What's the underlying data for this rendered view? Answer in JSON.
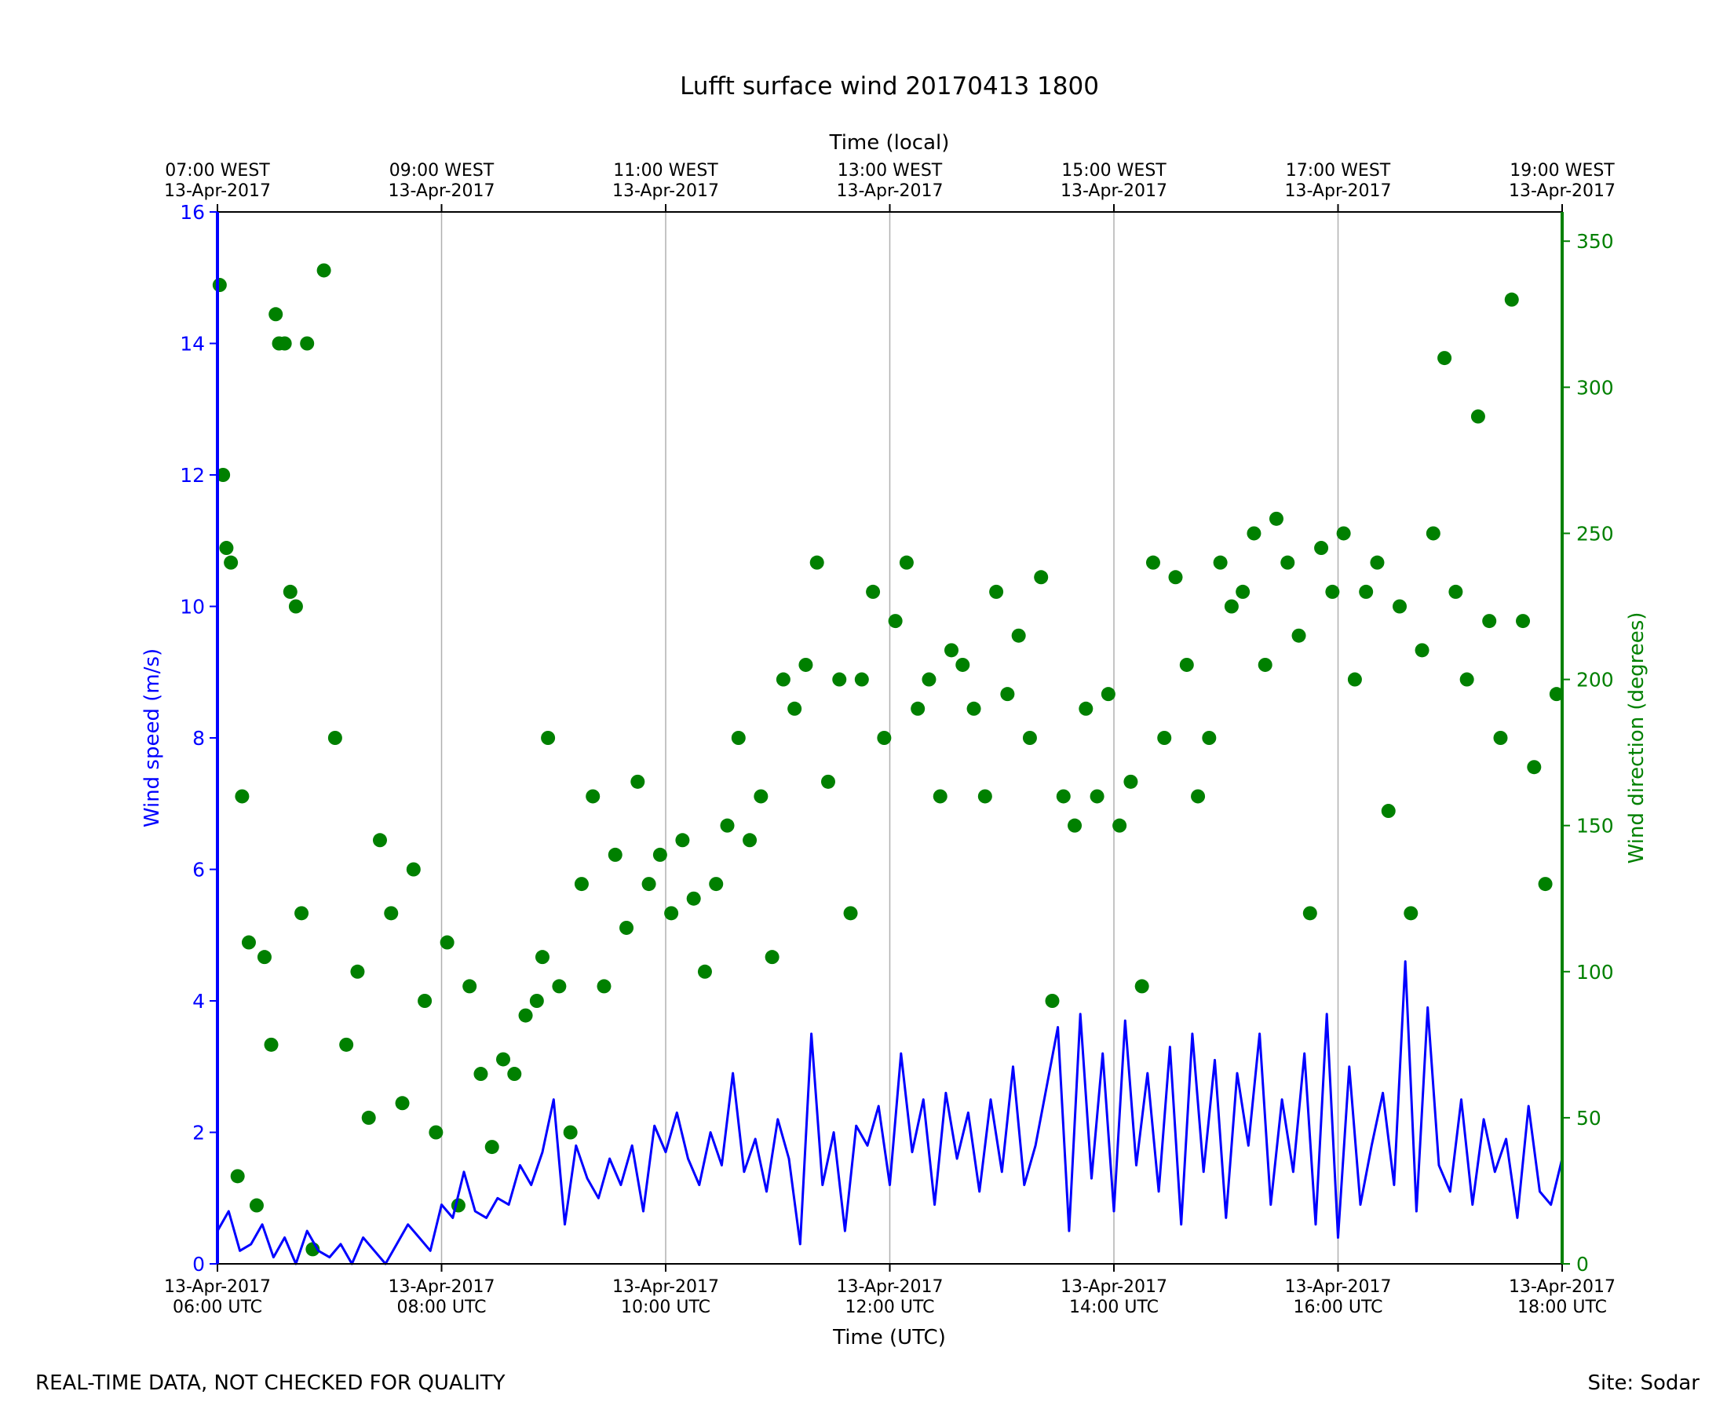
{
  "chart_data": {
    "type": "line+scatter",
    "title": "Lufft surface wind 20170413 1800",
    "xlabel_bottom": "Time (UTC)",
    "xlabel_top": "Time (local)",
    "ylabel_left": "Wind speed (m/s)",
    "ylabel_right": "Wind direction (degrees)",
    "x_range_hours_utc": [
      6,
      18
    ],
    "ylim_left": [
      0,
      16
    ],
    "ylim_right": [
      0,
      360
    ],
    "grid": "vertical only",
    "bottom_ticks": [
      {
        "hour": 6,
        "date": "13-Apr-2017",
        "time": "06:00 UTC"
      },
      {
        "hour": 8,
        "date": "13-Apr-2017",
        "time": "08:00 UTC"
      },
      {
        "hour": 10,
        "date": "13-Apr-2017",
        "time": "10:00 UTC"
      },
      {
        "hour": 12,
        "date": "13-Apr-2017",
        "time": "12:00 UTC"
      },
      {
        "hour": 14,
        "date": "13-Apr-2017",
        "time": "14:00 UTC"
      },
      {
        "hour": 16,
        "date": "13-Apr-2017",
        "time": "16:00 UTC"
      },
      {
        "hour": 18,
        "date": "13-Apr-2017",
        "time": "18:00 UTC"
      }
    ],
    "top_ticks": [
      {
        "hour": 6,
        "time": "07:00 WEST",
        "date": "13-Apr-2017"
      },
      {
        "hour": 8,
        "time": "09:00 WEST",
        "date": "13-Apr-2017"
      },
      {
        "hour": 10,
        "time": "11:00 WEST",
        "date": "13-Apr-2017"
      },
      {
        "hour": 12,
        "time": "13:00 WEST",
        "date": "13-Apr-2017"
      },
      {
        "hour": 14,
        "time": "15:00 WEST",
        "date": "13-Apr-2017"
      },
      {
        "hour": 16,
        "time": "17:00 WEST",
        "date": "13-Apr-2017"
      },
      {
        "hour": 18,
        "time": "19:00 WEST",
        "date": "13-Apr-2017"
      }
    ],
    "left_ticks": [
      0,
      2,
      4,
      6,
      8,
      10,
      12,
      14,
      16
    ],
    "right_ticks": [
      0,
      50,
      100,
      150,
      200,
      250,
      300,
      350
    ],
    "colors": {
      "speed": "#0000ff",
      "direction": "#008000",
      "grid": "#b0b0b0"
    },
    "speed_series": {
      "name": "Wind speed",
      "x_hours": [
        6.0,
        6.1,
        6.2,
        6.3,
        6.4,
        6.5,
        6.6,
        6.7,
        6.8,
        6.9,
        7.0,
        7.1,
        7.2,
        7.3,
        7.4,
        7.5,
        7.6,
        7.7,
        7.8,
        7.9,
        8.0,
        8.1,
        8.2,
        8.3,
        8.4,
        8.5,
        8.6,
        8.7,
        8.8,
        8.9,
        9.0,
        9.1,
        9.2,
        9.3,
        9.4,
        9.5,
        9.6,
        9.7,
        9.8,
        9.9,
        10.0,
        10.1,
        10.2,
        10.3,
        10.4,
        10.5,
        10.6,
        10.7,
        10.8,
        10.9,
        11.0,
        11.1,
        11.2,
        11.3,
        11.4,
        11.5,
        11.6,
        11.7,
        11.8,
        11.9,
        12.0,
        12.1,
        12.2,
        12.3,
        12.4,
        12.5,
        12.6,
        12.7,
        12.8,
        12.9,
        13.0,
        13.1,
        13.2,
        13.3,
        13.4,
        13.5,
        13.6,
        13.7,
        13.8,
        13.9,
        14.0,
        14.1,
        14.2,
        14.3,
        14.4,
        14.5,
        14.6,
        14.7,
        14.8,
        14.9,
        15.0,
        15.1,
        15.2,
        15.3,
        15.4,
        15.5,
        15.6,
        15.7,
        15.8,
        15.9,
        16.0,
        16.1,
        16.2,
        16.3,
        16.4,
        16.5,
        16.6,
        16.7,
        16.8,
        16.9,
        17.0,
        17.1,
        17.2,
        17.3,
        17.4,
        17.5,
        17.6,
        17.7,
        17.8,
        17.9,
        18.0
      ],
      "values": [
        0.5,
        0.8,
        0.2,
        0.3,
        0.6,
        0.1,
        0.4,
        0.0,
        0.5,
        0.2,
        0.1,
        0.3,
        0.0,
        0.4,
        0.2,
        0.0,
        0.3,
        0.6,
        0.4,
        0.2,
        0.9,
        0.7,
        1.4,
        0.8,
        0.7,
        1.0,
        0.9,
        1.5,
        1.2,
        1.7,
        2.5,
        0.6,
        1.8,
        1.3,
        1.0,
        1.6,
        1.2,
        1.8,
        0.8,
        2.1,
        1.7,
        2.3,
        1.6,
        1.2,
        2.0,
        1.5,
        2.9,
        1.4,
        1.9,
        1.1,
        2.2,
        1.6,
        0.3,
        3.5,
        1.2,
        2.0,
        0.5,
        2.1,
        1.8,
        2.4,
        1.2,
        3.2,
        1.7,
        2.5,
        0.9,
        2.6,
        1.6,
        2.3,
        1.1,
        2.5,
        1.4,
        3.0,
        1.2,
        1.8,
        2.7,
        3.6,
        0.5,
        3.8,
        1.3,
        3.2,
        0.8,
        3.7,
        1.5,
        2.9,
        1.1,
        3.3,
        0.6,
        3.5,
        1.4,
        3.1,
        0.7,
        2.9,
        1.8,
        3.5,
        0.9,
        2.5,
        1.4,
        3.2,
        0.6,
        3.8,
        0.4,
        3.0,
        0.9,
        1.8,
        2.6,
        1.2,
        4.6,
        0.8,
        3.9,
        1.5,
        1.1,
        2.5,
        0.9,
        2.2,
        1.4,
        1.9,
        0.7,
        2.4,
        1.1,
        0.9,
        1.6
      ],
      "note": "approximate envelope of the dense 1-minute trace"
    },
    "direction_series": {
      "name": "Wind direction",
      "x_hours": [
        6.02,
        6.05,
        6.08,
        6.12,
        6.18,
        6.22,
        6.28,
        6.35,
        6.42,
        6.48,
        6.52,
        6.55,
        6.6,
        6.65,
        6.7,
        6.75,
        6.8,
        6.85,
        6.95,
        7.05,
        7.15,
        7.25,
        7.35,
        7.45,
        7.55,
        7.65,
        7.75,
        7.85,
        7.95,
        8.05,
        8.15,
        8.25,
        8.35,
        8.45,
        8.55,
        8.65,
        8.75,
        8.85,
        8.9,
        8.95,
        9.05,
        9.15,
        9.25,
        9.35,
        9.45,
        9.55,
        9.65,
        9.75,
        9.85,
        9.95,
        10.05,
        10.15,
        10.25,
        10.35,
        10.45,
        10.55,
        10.65,
        10.75,
        10.85,
        10.95,
        11.05,
        11.15,
        11.25,
        11.35,
        11.45,
        11.55,
        11.65,
        11.75,
        11.85,
        11.95,
        12.05,
        12.15,
        12.25,
        12.35,
        12.45,
        12.55,
        12.65,
        12.75,
        12.85,
        12.95,
        13.05,
        13.15,
        13.25,
        13.35,
        13.45,
        13.55,
        13.65,
        13.75,
        13.85,
        13.95,
        14.05,
        14.15,
        14.25,
        14.35,
        14.45,
        14.55,
        14.65,
        14.75,
        14.85,
        14.95,
        15.05,
        15.15,
        15.25,
        15.35,
        15.45,
        15.55,
        15.65,
        15.75,
        15.85,
        15.95,
        16.05,
        16.15,
        16.25,
        16.35,
        16.45,
        16.55,
        16.65,
        16.75,
        16.85,
        16.95,
        17.05,
        17.15,
        17.25,
        17.35,
        17.45,
        17.55,
        17.65,
        17.75,
        17.85,
        17.95
      ],
      "values": [
        335,
        270,
        245,
        240,
        30,
        160,
        110,
        20,
        105,
        75,
        325,
        315,
        315,
        230,
        225,
        120,
        315,
        5,
        340,
        180,
        75,
        100,
        50,
        145,
        120,
        55,
        135,
        90,
        45,
        110,
        20,
        95,
        65,
        40,
        70,
        65,
        85,
        90,
        105,
        180,
        95,
        45,
        130,
        160,
        95,
        140,
        115,
        165,
        130,
        140,
        120,
        145,
        125,
        100,
        130,
        150,
        180,
        145,
        160,
        105,
        200,
        190,
        205,
        240,
        165,
        200,
        120,
        200,
        230,
        180,
        220,
        240,
        190,
        200,
        160,
        210,
        205,
        190,
        160,
        230,
        195,
        215,
        180,
        235,
        90,
        160,
        150,
        190,
        160,
        195,
        150,
        165,
        95,
        240,
        180,
        235,
        205,
        160,
        180,
        240,
        225,
        230,
        250,
        205,
        255,
        240,
        215,
        120,
        245,
        230,
        250,
        200,
        230,
        240,
        155,
        225,
        120,
        210,
        250,
        310,
        230,
        200,
        290,
        220,
        180,
        330,
        220,
        170,
        130,
        195
      ],
      "note": "approximate sample of the scatter markers"
    }
  },
  "footer": {
    "left": "REAL-TIME DATA, NOT CHECKED FOR QUALITY",
    "right": "Site: Sodar"
  }
}
